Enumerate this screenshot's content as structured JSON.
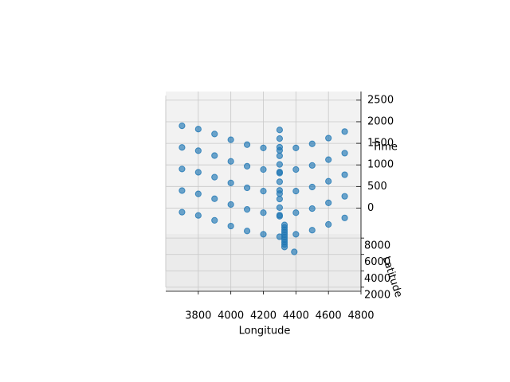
{
  "chart_data": {
    "type": "scatter3d",
    "xlabel": "Longitude",
    "ylabel": "Latitude",
    "zlabel": "Time",
    "xlim": [
      3600,
      4800
    ],
    "xticks": [
      3800,
      4000,
      4200,
      4400,
      4600,
      4800
    ],
    "ylim": [
      1500,
      8500
    ],
    "yticks": [
      2000,
      4000,
      6000,
      8000
    ],
    "zlim": [
      -600,
      2700
    ],
    "zticks": [
      0,
      500,
      1000,
      1500,
      2000,
      2500
    ],
    "grid": true,
    "series": [
      {
        "color": "#1f77b4",
        "x": [
          3700,
          3800,
          3900,
          4000,
          4100,
          4200,
          4300,
          4400,
          4500,
          4600,
          4700,
          3700,
          3800,
          3900,
          4000,
          4100,
          4200,
          4300,
          4400,
          4500,
          4600,
          4700,
          3700,
          3800,
          3900,
          4000,
          4100,
          4200,
          4300,
          4400,
          4500,
          4600,
          4700,
          3700,
          3800,
          3900,
          4000,
          4100,
          4200,
          4300,
          4400,
          4500,
          4600,
          4700,
          3700,
          3800,
          3900,
          4000,
          4100,
          4200,
          4300,
          4400,
          4500,
          4600,
          4700,
          4300,
          4300,
          4300,
          4300,
          4300,
          4300,
          4300,
          4300,
          4300,
          4300,
          4300,
          4330,
          4330,
          4330,
          4330,
          4330,
          4330,
          4330,
          4330,
          4330,
          4330,
          4390
        ],
        "y": [
          8000,
          7600,
          7000,
          6300,
          5700,
          5300,
          5000,
          5300,
          5800,
          6500,
          7300,
          8000,
          7600,
          7000,
          6300,
          5700,
          5300,
          5000,
          5300,
          5800,
          6500,
          7300,
          8000,
          7600,
          7000,
          6300,
          5700,
          5300,
          5000,
          5300,
          5800,
          6500,
          7300,
          8000,
          7600,
          7000,
          6300,
          5700,
          5300,
          5000,
          5300,
          5800,
          6500,
          7300,
          8000,
          7600,
          7000,
          6300,
          5700,
          5300,
          5000,
          5300,
          5800,
          6500,
          7300,
          7500,
          7500,
          7500,
          7500,
          7500,
          7500,
          7500,
          7500,
          7500,
          7500,
          7500,
          7500,
          7200,
          6900,
          6600,
          6300,
          6000,
          5700,
          5400,
          5100,
          4800,
          4200
        ],
        "z": [
          0,
          0,
          0,
          0,
          0,
          0,
          0,
          0,
          0,
          0,
          0,
          500,
          500,
          500,
          500,
          500,
          500,
          500,
          500,
          500,
          500,
          500,
          1000,
          1000,
          1000,
          1000,
          1000,
          1000,
          1000,
          1000,
          1000,
          1000,
          1000,
          1500,
          1500,
          1500,
          1500,
          1500,
          1500,
          1500,
          1500,
          1500,
          1500,
          1500,
          2000,
          2000,
          2000,
          2000,
          2000,
          2000,
          2000,
          2000,
          2000,
          2000,
          2000,
          0,
          200,
          400,
          600,
          800,
          1000,
          1200,
          1400,
          1600,
          1800,
          2000,
          -200,
          -200,
          -200,
          -200,
          -200,
          -200,
          -200,
          -200,
          -200,
          -200,
          -200
        ]
      }
    ]
  }
}
